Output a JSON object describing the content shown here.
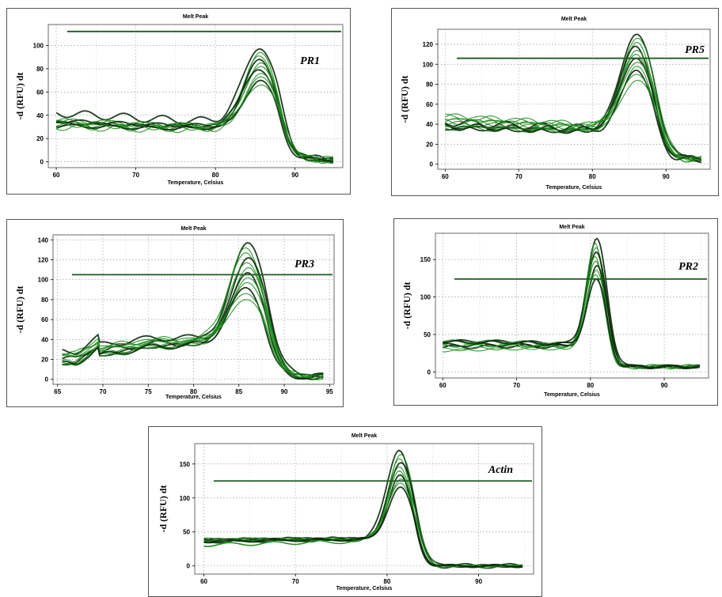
{
  "colors": {
    "curve_dark": "#0a2a0a",
    "curve_green": "#1e8c1e",
    "threshold": "#1f5a1f",
    "frame": "#6a6a6a",
    "grid": "#9a9a9a"
  },
  "chart_data": [
    {
      "type": "line",
      "title": "Melt Peak",
      "annotation": "PR1",
      "xlabel": "Temperature, Celsius",
      "ylabel": "-d (RFU) dt",
      "xlim": [
        59,
        96
      ],
      "ylim": [
        -5,
        118
      ],
      "xticks": [
        60,
        70,
        80,
        90
      ],
      "yticks": [
        0,
        20,
        40,
        60,
        80,
        100
      ],
      "threshold": 112,
      "peak_x": 85.6,
      "peak_width": 2.0,
      "baseline_start": 37,
      "baseline_mid": 33,
      "baseline_pre_peak": 31,
      "tail_level": 2,
      "peak_heights": [
        97,
        94,
        91,
        88,
        85,
        82,
        79,
        76,
        73,
        70,
        66
      ]
    },
    {
      "type": "line",
      "title": "Melt Peak",
      "annotation": "PR5",
      "xlabel": "Temperature, Celsius",
      "ylabel": "-d (RFU) dt",
      "xlim": [
        59,
        96
      ],
      "ylim": [
        -5,
        135
      ],
      "xticks": [
        60,
        70,
        80,
        90
      ],
      "yticks": [
        0,
        20,
        40,
        60,
        80,
        100,
        120
      ],
      "threshold": 106,
      "peak_x": 86.0,
      "peak_width": 2.1,
      "baseline_start": 42,
      "baseline_mid": 38,
      "baseline_pre_peak": 34,
      "tail_level": 5,
      "peak_heights": [
        130,
        126,
        122,
        118,
        114,
        110,
        106,
        102,
        98,
        94,
        90,
        84
      ]
    },
    {
      "type": "line",
      "title": "Melt Peak",
      "annotation": "PR3",
      "xlabel": "Temperature, Celsius",
      "ylabel": "-d (RFU) dt",
      "xlim": [
        64.5,
        95.5
      ],
      "ylim": [
        -5,
        145
      ],
      "xticks": [
        65,
        70,
        75,
        80,
        85,
        90,
        95
      ],
      "yticks": [
        0,
        20,
        40,
        60,
        80,
        100,
        120,
        140
      ],
      "threshold": 105,
      "peak_x": 85.9,
      "peak_width": 1.8,
      "baseline_start": 22,
      "baseline_mid": 37,
      "baseline_pre_peak": 40,
      "tail_level": 3,
      "step_x": 69.5,
      "peak_heights": [
        137,
        132,
        127,
        122,
        117,
        112,
        107,
        102,
        97,
        92,
        86,
        80
      ]
    },
    {
      "type": "line",
      "title": "Melt Peak",
      "annotation": "PR2",
      "xlabel": "Temperature, Celsius",
      "ylabel": "-d (RFU) dt",
      "xlim": [
        59,
        96
      ],
      "ylim": [
        -8,
        185
      ],
      "xticks": [
        60,
        70,
        80,
        90
      ],
      "yticks": [
        0,
        50,
        100,
        150
      ],
      "threshold": 124,
      "peak_x": 80.7,
      "peak_width": 1.25,
      "baseline_start": 35,
      "baseline_mid": 36,
      "baseline_pre_peak": 34,
      "tail_level": 7,
      "peak_heights": [
        178,
        172,
        166,
        160,
        154,
        148,
        142,
        136,
        130,
        124
      ]
    },
    {
      "type": "line",
      "title": "Melt Peak",
      "annotation": "Actin",
      "xlabel": "Temperature, Celsius",
      "ylabel": "-d (RFU) dt",
      "xlim": [
        59,
        96
      ],
      "ylim": [
        -12,
        180
      ],
      "xticks": [
        60,
        70,
        80,
        90
      ],
      "yticks": [
        0,
        50,
        100,
        150
      ],
      "threshold": 125,
      "peak_x": 81.5,
      "peak_width": 1.3,
      "baseline_start": 33,
      "baseline_mid": 36,
      "baseline_pre_peak": 38,
      "tail_level": 0,
      "peak_heights": [
        170,
        164,
        158,
        152,
        146,
        140,
        134,
        128,
        122,
        116
      ]
    }
  ]
}
